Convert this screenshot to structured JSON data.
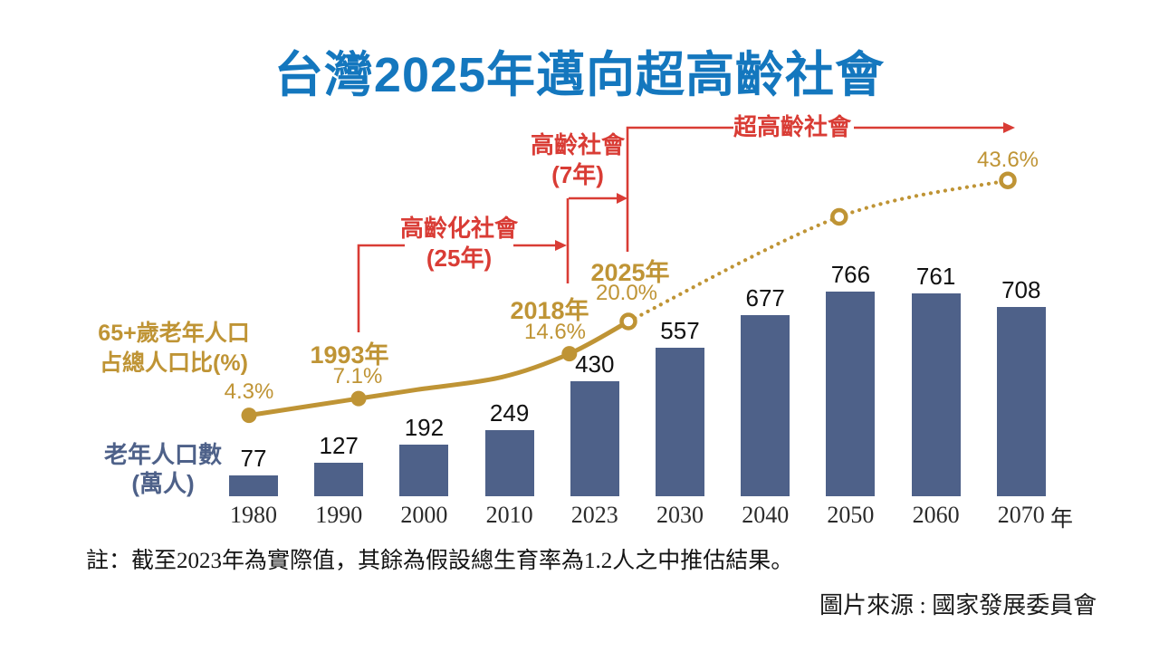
{
  "title": "台灣2025年邁向超高齡社會",
  "annotations": {
    "aging_society": "高齡化社會",
    "aging_society_duration": "(25年)",
    "aged_society": "高齡社會",
    "aged_society_duration": "(7年)",
    "super_aged_society": "超高齡社會"
  },
  "axis_labels": {
    "pct_line_1": "65+歲老年人口",
    "pct_line_2": "占總人口比(%)",
    "count_line_1": "老年人口數",
    "count_line_2": "(萬人)"
  },
  "chart_data": {
    "type": "bar+line",
    "x_axis_suffix": "年",
    "bars": {
      "categories": [
        "1980",
        "1990",
        "2000",
        "2010",
        "2023",
        "2030",
        "2040",
        "2050",
        "2060",
        "2070"
      ],
      "values": [
        77,
        127,
        192,
        249,
        430,
        557,
        677,
        766,
        761,
        708
      ],
      "series_name": "老年人口數(萬人)",
      "note_on_style": "slate-blue vertical bars, value labels above, serif year ticks below"
    },
    "line": {
      "series_name": "65+歲老年人口占總人口比(%)",
      "points": [
        {
          "year": 1980,
          "pct": 4.3,
          "marker": "dot",
          "pct_label": "4.3%"
        },
        {
          "year": 1993,
          "pct": 7.1,
          "marker": "dot",
          "year_label": "1993年",
          "pct_label": "7.1%"
        },
        {
          "year": 2000,
          "pct": 8.6,
          "marker": "none"
        },
        {
          "year": 2010,
          "pct": 10.7,
          "marker": "none"
        },
        {
          "year": 2018,
          "pct": 14.6,
          "marker": "dot",
          "year_label": "2018年",
          "pct_label": "14.6%"
        },
        {
          "year": 2025,
          "pct": 20.0,
          "marker": "open",
          "year_label": "2025年",
          "pct_label": "20.0%"
        },
        {
          "year": 2050,
          "pct": 37.5,
          "marker": "open"
        },
        {
          "year": 2070,
          "pct": 43.6,
          "marker": "open",
          "pct_label": "43.6%"
        }
      ],
      "solid_until_year": 2025,
      "dotted_after_year": 2025
    }
  },
  "note": "註：截至2023年為實際值，其餘為假設總生育率為1.2人之中推估結果。",
  "source": "圖片來源 : 國家發展委員會",
  "colors": {
    "title_blue": "#1477BE",
    "bar_slate": "#4E6189",
    "gold": "#BF9435",
    "red": "#D93C35"
  }
}
